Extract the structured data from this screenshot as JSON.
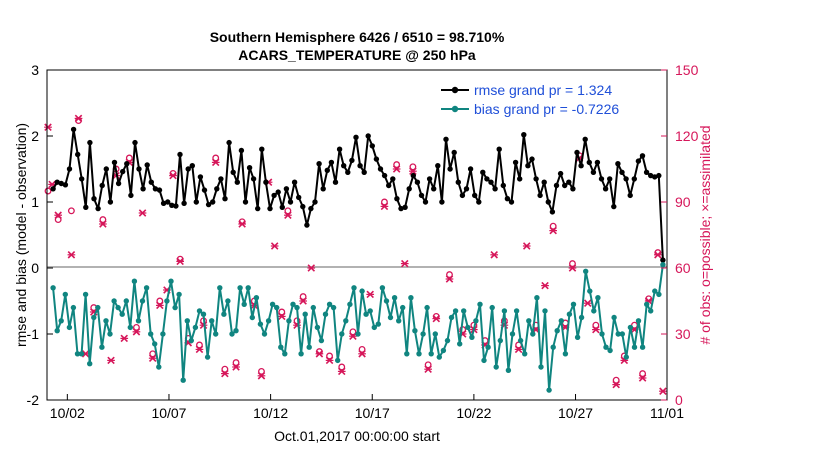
{
  "chart_data": {
    "type": "line",
    "title": "Southern Hemisphere 6426 / 6510 = 98.710%",
    "subtitle": "ACARS_TEMPERATURE @ 250 hPa",
    "xlabel": "Oct.01,2017 00:00:00 start",
    "ylabel": "rmse and bias (model - observation)",
    "y2label": "# of obs: o=possible; ×=assimilated",
    "ylim": [
      -2,
      3
    ],
    "y2lim": [
      0,
      150
    ],
    "yticks": [
      "-2",
      "-1",
      "0",
      "1",
      "2",
      "3"
    ],
    "y2ticks": [
      "0",
      "30",
      "60",
      "90",
      "120",
      "150"
    ],
    "xlim": [
      1,
      31.5
    ],
    "xticks": [
      {
        "day": 2,
        "label": "10/02"
      },
      {
        "day": 7,
        "label": "10/07"
      },
      {
        "day": 12,
        "label": "10/12"
      },
      {
        "day": 17,
        "label": "10/17"
      },
      {
        "day": 22,
        "label": "10/22"
      },
      {
        "day": 27,
        "label": "10/27"
      },
      {
        "day": 32,
        "label": "11/01"
      }
    ],
    "series": [
      {
        "name": "rmse grand pr = 1.324",
        "color": "#000000",
        "values": [
          1.2,
          1.3,
          1.28,
          1.26,
          1.5,
          2.1,
          1.72,
          1.35,
          0.92,
          1.9,
          1.05,
          0.9,
          1.25,
          1.5,
          1.0,
          1.6,
          1.28,
          1.46,
          1.58,
          1.1,
          1.9,
          1.5,
          1.2,
          1.56,
          1.3,
          1.2,
          1.18,
          0.98,
          1.0,
          0.95,
          0.94,
          1.72,
          0.98,
          1.5,
          1.55,
          1.0,
          1.38,
          1.18,
          0.96,
          1.0,
          1.2,
          1.35,
          1.05,
          1.9,
          1.45,
          1.3,
          1.78,
          1.0,
          1.52,
          1.35,
          0.9,
          1.8,
          1.3,
          0.9,
          1.1,
          1.15,
          0.92,
          1.2,
          1.0,
          1.3,
          1.07,
          0.93,
          0.65,
          0.9,
          1.0,
          1.58,
          1.2,
          1.48,
          1.6,
          1.3,
          1.8,
          1.55,
          1.45,
          1.63,
          1.98,
          1.55,
          1.45,
          2.0,
          1.85,
          1.65,
          1.5,
          1.4,
          1.25,
          1.35,
          1.05,
          0.9,
          0.92,
          1.2,
          1.4,
          1.3,
          1.1,
          1.0,
          1.35,
          1.2,
          1.55,
          1.0,
          1.95,
          1.5,
          1.75,
          1.3,
          1.1,
          1.2,
          1.5,
          1.1,
          1.0,
          1.45,
          1.35,
          1.3,
          1.2,
          1.8,
          1.25,
          1.05,
          1.0,
          1.6,
          1.35,
          2.02,
          1.55,
          1.65,
          1.35,
          1.1,
          1.3,
          1.0,
          0.85,
          1.25,
          1.43,
          1.25,
          1.3,
          1.2,
          1.75,
          1.55,
          1.95,
          1.6,
          1.45,
          1.6,
          1.35,
          1.2,
          1.35,
          0.93,
          1.58,
          1.45,
          1.35,
          1.1,
          1.35,
          1.62,
          1.7,
          1.45,
          1.4,
          1.38,
          1.4,
          0.12
        ]
      },
      {
        "name": "bias grand pr = -0.7226",
        "color": "#108580",
        "values": [
          -0.3,
          -0.95,
          -0.8,
          -0.4,
          -0.9,
          -0.6,
          -1.3,
          -1.3,
          -0.4,
          -1.45,
          -0.75,
          -0.6,
          -1.2,
          -0.8,
          -1.0,
          -0.5,
          -0.6,
          -0.7,
          -0.5,
          -0.9,
          -0.2,
          -0.8,
          -0.5,
          -0.3,
          -1.0,
          -1.15,
          -1.5,
          -1.0,
          -0.5,
          -0.2,
          -0.6,
          -0.4,
          -1.7,
          -0.8,
          -1.1,
          -0.9,
          -0.65,
          -0.7,
          -1.35,
          -0.8,
          -1.0,
          -0.3,
          -0.7,
          -0.5,
          -1.0,
          -0.95,
          -0.3,
          -0.55,
          -0.3,
          -0.75,
          -0.45,
          -0.85,
          -1.0,
          -0.8,
          -0.55,
          -0.6,
          -1.2,
          -1.3,
          -0.8,
          -0.55,
          -0.6,
          -1.3,
          -0.7,
          -1.2,
          -0.6,
          -0.9,
          -1.1,
          -0.7,
          -0.55,
          -0.6,
          -1.4,
          -1.0,
          -0.8,
          -0.55,
          -0.3,
          -1.0,
          -0.35,
          -0.7,
          -0.65,
          -0.9,
          -0.85,
          -0.3,
          -0.5,
          -0.75,
          -0.45,
          -0.8,
          -0.6,
          -1.3,
          -0.45,
          -0.95,
          -1.3,
          -1.0,
          -0.6,
          -1.3,
          -1.0,
          -1.35,
          -1.25,
          -1.1,
          -0.75,
          -0.65,
          -1.15,
          -0.65,
          -0.9,
          -1.05,
          -0.8,
          -0.55,
          -1.4,
          -1.2,
          -0.6,
          -1.5,
          -1.1,
          -0.65,
          -1.55,
          -1.0,
          -0.65,
          -1.1,
          -1.3,
          -0.8,
          -1.0,
          -0.45,
          -1.5,
          -0.65,
          -1.85,
          -1.2,
          -0.95,
          -0.8,
          -1.3,
          -0.7,
          -0.55,
          -1.05,
          -0.75,
          -0.05,
          -0.35,
          -0.65,
          -0.45,
          -1.0,
          -1.2,
          -1.25,
          -0.75,
          -1.0,
          -1.0,
          -1.35,
          -0.9,
          -1.2,
          -0.8,
          -1.2,
          -0.55,
          -0.65,
          -0.35,
          -0.4,
          0.05
        ]
      }
    ],
    "obs_possible": [
      [
        1.05,
        95
      ],
      [
        1.55,
        82
      ],
      [
        2.2,
        86
      ],
      [
        2.55,
        127
      ],
      [
        3.3,
        42
      ],
      [
        3.75,
        82
      ],
      [
        4.4,
        105
      ],
      [
        5.05,
        110
      ],
      [
        5.4,
        33
      ],
      [
        6.2,
        21
      ],
      [
        6.55,
        45
      ],
      [
        7.2,
        103
      ],
      [
        7.55,
        64
      ],
      [
        7.95,
        28
      ],
      [
        8.5,
        25
      ],
      [
        8.7,
        36
      ],
      [
        9.3,
        110
      ],
      [
        9.75,
        14
      ],
      [
        10.3,
        17
      ],
      [
        10.6,
        81
      ],
      [
        11.2,
        45
      ],
      [
        11.55,
        13
      ],
      [
        12.55,
        40
      ],
      [
        12.85,
        86
      ],
      [
        13.3,
        36
      ],
      [
        13.6,
        47
      ],
      [
        14.4,
        22
      ],
      [
        14.9,
        20
      ],
      [
        15.5,
        15
      ],
      [
        16.05,
        31
      ],
      [
        16.5,
        23
      ],
      [
        17.6,
        90
      ],
      [
        18.2,
        107
      ],
      [
        19.0,
        106
      ],
      [
        19.75,
        16
      ],
      [
        20.15,
        38
      ],
      [
        20.8,
        57
      ],
      [
        21.45,
        32
      ],
      [
        22.0,
        34
      ],
      [
        22.55,
        27
      ],
      [
        23.5,
        36
      ],
      [
        24.2,
        25
      ],
      [
        25.05,
        34
      ],
      [
        25.9,
        79
      ],
      [
        26.5,
        35
      ],
      [
        26.85,
        62
      ],
      [
        27.2,
        111
      ],
      [
        28.0,
        34
      ],
      [
        28.5,
        135
      ],
      [
        29.0,
        9
      ],
      [
        29.4,
        20
      ],
      [
        29.9,
        34
      ],
      [
        30.3,
        12
      ],
      [
        30.6,
        46
      ],
      [
        31.05,
        67
      ]
    ],
    "obs_assimilated": [
      [
        1.05,
        124
      ],
      [
        1.25,
        98
      ],
      [
        1.55,
        84
      ],
      [
        2.2,
        66
      ],
      [
        2.55,
        128
      ],
      [
        2.9,
        21
      ],
      [
        3.3,
        40
      ],
      [
        3.75,
        80
      ],
      [
        4.15,
        18
      ],
      [
        4.4,
        102
      ],
      [
        4.8,
        28
      ],
      [
        5.05,
        108
      ],
      [
        5.4,
        31
      ],
      [
        5.7,
        85
      ],
      [
        6.2,
        19
      ],
      [
        6.55,
        43
      ],
      [
        6.9,
        50
      ],
      [
        7.2,
        102
      ],
      [
        7.55,
        63
      ],
      [
        7.95,
        26
      ],
      [
        8.5,
        23
      ],
      [
        8.7,
        34
      ],
      [
        9.3,
        108
      ],
      [
        9.75,
        12
      ],
      [
        10.3,
        15
      ],
      [
        10.6,
        80
      ],
      [
        11.2,
        43
      ],
      [
        11.55,
        11
      ],
      [
        11.9,
        99
      ],
      [
        12.2,
        70
      ],
      [
        12.55,
        38
      ],
      [
        12.85,
        84
      ],
      [
        13.3,
        34
      ],
      [
        13.6,
        45
      ],
      [
        14.0,
        60
      ],
      [
        14.4,
        21
      ],
      [
        14.9,
        18
      ],
      [
        15.5,
        13
      ],
      [
        16.05,
        29
      ],
      [
        16.5,
        21
      ],
      [
        16.9,
        48
      ],
      [
        17.6,
        88
      ],
      [
        18.2,
        105
      ],
      [
        18.6,
        62
      ],
      [
        19.0,
        104
      ],
      [
        19.75,
        14
      ],
      [
        20.15,
        37
      ],
      [
        20.8,
        55
      ],
      [
        21.45,
        30
      ],
      [
        22.0,
        32
      ],
      [
        22.55,
        25
      ],
      [
        23.0,
        66
      ],
      [
        23.5,
        34
      ],
      [
        24.2,
        23
      ],
      [
        24.6,
        70
      ],
      [
        25.05,
        32
      ],
      [
        25.5,
        52
      ],
      [
        25.9,
        77
      ],
      [
        26.5,
        33
      ],
      [
        26.85,
        60
      ],
      [
        27.2,
        110
      ],
      [
        27.6,
        44
      ],
      [
        28.0,
        32
      ],
      [
        28.5,
        134
      ],
      [
        29.0,
        7
      ],
      [
        29.4,
        18
      ],
      [
        29.9,
        32
      ],
      [
        30.3,
        10
      ],
      [
        30.6,
        45
      ],
      [
        31.05,
        66
      ],
      [
        31.3,
        4
      ]
    ]
  }
}
